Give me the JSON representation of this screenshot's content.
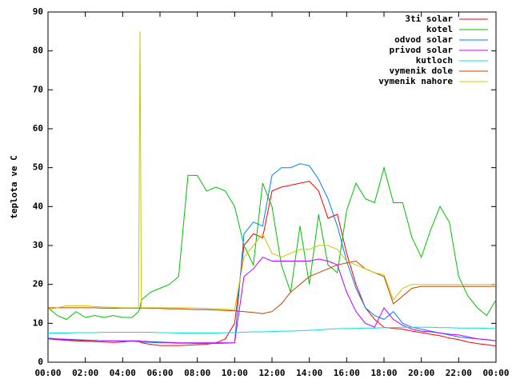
{
  "chart_data": {
    "type": "line",
    "ylabel": "teplota ve C",
    "x": [
      0,
      0.5,
      1,
      1.5,
      2,
      2.5,
      3,
      3.5,
      4,
      4.5,
      4.85,
      4.93,
      5,
      5.5,
      6,
      6.5,
      7,
      7.5,
      8,
      8.5,
      9,
      9.5,
      10,
      10.5,
      11,
      11.5,
      12,
      12.5,
      13,
      13.5,
      14,
      14.5,
      15,
      15.5,
      16,
      16.5,
      17,
      17.5,
      18,
      18.5,
      19,
      19.5,
      20,
      20.5,
      21,
      21.5,
      22,
      22.5,
      23,
      23.5,
      24
    ],
    "xlim": [
      0,
      24
    ],
    "xticks": [
      {
        "value": 0,
        "label": "00:00"
      },
      {
        "value": 2,
        "label": "02:00"
      },
      {
        "value": 4,
        "label": "04:00"
      },
      {
        "value": 6,
        "label": "06:00"
      },
      {
        "value": 8,
        "label": "08:00"
      },
      {
        "value": 10,
        "label": "10:00"
      },
      {
        "value": 12,
        "label": "12:00"
      },
      {
        "value": 14,
        "label": "14:00"
      },
      {
        "value": 16,
        "label": "16:00"
      },
      {
        "value": 18,
        "label": "18:00"
      },
      {
        "value": 20,
        "label": "20:00"
      },
      {
        "value": 22,
        "label": "22:00"
      },
      {
        "value": 24,
        "label": "00:00"
      }
    ],
    "ylim": [
      0,
      90
    ],
    "yticks": [
      0,
      10,
      20,
      30,
      40,
      50,
      60,
      70,
      80,
      90
    ],
    "legend": "top-right",
    "series": [
      {
        "name": "3ti solar",
        "color": "#ff0000",
        "values": [
          6,
          5.8,
          5.6,
          5.5,
          5.4,
          5.3,
          5.2,
          5.1,
          5.2,
          5.5,
          5.3,
          5.2,
          5,
          4.6,
          4.3,
          4.3,
          4.3,
          4.4,
          4.5,
          4.6,
          5,
          6,
          10,
          30,
          33,
          32,
          44,
          45,
          45.5,
          46,
          46.5,
          44,
          37,
          38,
          28,
          20,
          14,
          11,
          9,
          8.7,
          8.5,
          8,
          7.6,
          7.2,
          6.8,
          6.2,
          5.8,
          5.2,
          4.8,
          4.5,
          4.2
        ]
      },
      {
        "name": "kotel",
        "color": "#00c000",
        "values": [
          14,
          12,
          11,
          13,
          11.5,
          12,
          11.5,
          12,
          11.5,
          11.5,
          13,
          14,
          16,
          18,
          19,
          20,
          22,
          48,
          48,
          44,
          45,
          44,
          40,
          30,
          25,
          46,
          40,
          25,
          18,
          35,
          20,
          38,
          25,
          23,
          39,
          46,
          42,
          41,
          50,
          41,
          41,
          32,
          27,
          34,
          40,
          36,
          22,
          17,
          14,
          12,
          16
        ]
      },
      {
        "name": "odvod solar",
        "color": "#0080ff",
        "values": [
          6.2,
          6,
          5.9,
          5.8,
          5.7,
          5.6,
          5.5,
          5.5,
          5.4,
          5.4,
          5.3,
          5.3,
          5.2,
          5.1,
          5,
          5,
          4.9,
          4.9,
          4.8,
          4.8,
          4.8,
          4.9,
          5,
          33,
          36,
          35,
          48,
          50,
          50,
          51,
          50.5,
          47,
          42,
          35,
          26,
          19,
          14,
          12,
          11,
          13,
          10,
          9,
          8.5,
          8,
          7.5,
          7,
          6.5,
          6.2,
          6,
          5.8,
          5.5
        ]
      },
      {
        "name": "privod solar",
        "color": "#c000ff",
        "values": [
          6,
          5.9,
          5.8,
          5.7,
          5.6,
          5.6,
          5.5,
          5.5,
          5.5,
          5.5,
          5.5,
          5.5,
          5.4,
          5.3,
          5.2,
          5.1,
          5,
          5,
          5,
          5,
          5,
          5,
          5,
          22,
          24,
          27,
          26,
          26,
          26,
          26,
          26,
          26.5,
          26,
          25,
          18,
          13,
          10,
          9,
          14,
          11,
          9.5,
          8.5,
          8,
          7.8,
          7.5,
          7.2,
          7,
          6.5,
          6,
          5.8,
          5.5
        ]
      },
      {
        "name": "kutloch",
        "color": "#00e0e0",
        "values": [
          7.5,
          7.5,
          7.5,
          7.6,
          7.6,
          7.6,
          7.7,
          7.7,
          7.7,
          7.7,
          7.7,
          7.7,
          7.7,
          7.7,
          7.6,
          7.6,
          7.5,
          7.5,
          7.5,
          7.5,
          7.5,
          7.6,
          7.6,
          7.7,
          7.8,
          7.8,
          7.9,
          8,
          8,
          8.1,
          8.2,
          8.3,
          8.5,
          8.6,
          8.7,
          8.7,
          8.8,
          8.8,
          8.9,
          8.9,
          9,
          9,
          9,
          9,
          8.9,
          8.9,
          8.8,
          8.8,
          8.8,
          8.7,
          8.7
        ]
      },
      {
        "name": "vymenik dole",
        "color": "#c04000",
        "values": [
          14,
          14,
          14,
          14,
          14,
          14,
          13.9,
          13.9,
          13.9,
          13.9,
          13.9,
          13.9,
          13.9,
          13.8,
          13.8,
          13.7,
          13.7,
          13.6,
          13.5,
          13.5,
          13.4,
          13.3,
          13.2,
          13,
          12.8,
          12.5,
          13,
          15,
          18,
          20,
          22,
          23,
          24,
          25,
          25.5,
          26,
          24,
          23,
          22,
          15,
          17,
          19,
          19.5,
          19.5,
          19.5,
          19.5,
          19.5,
          19.5,
          19.5,
          19.5,
          19.5
        ]
      },
      {
        "name": "vymenik nahore",
        "color": "#c8c800",
        "values": [
          13.5,
          14,
          14.5,
          14.5,
          14.5,
          14.3,
          14.2,
          14.1,
          14,
          14,
          14,
          85,
          14,
          14,
          14,
          14,
          14,
          14,
          13.9,
          13.8,
          13.7,
          13.6,
          13.5,
          27,
          30,
          33,
          28,
          27,
          28,
          29,
          29,
          30,
          30,
          29,
          26,
          25,
          24,
          23,
          22.5,
          16,
          19,
          20,
          20,
          20,
          20,
          20,
          20,
          20,
          20,
          20,
          20
        ]
      }
    ]
  }
}
